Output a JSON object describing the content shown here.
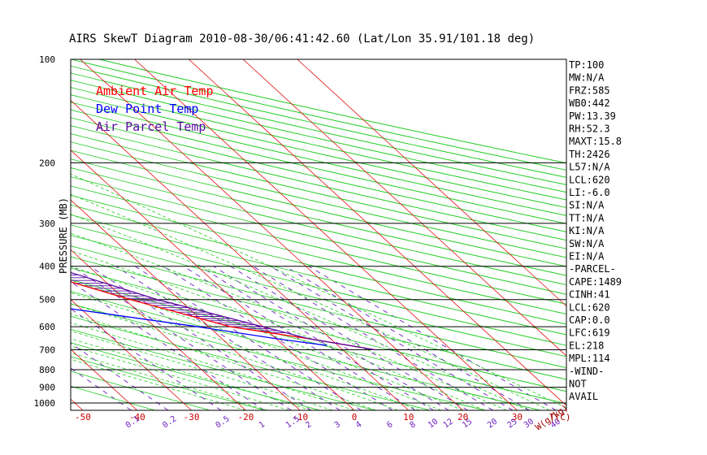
{
  "chart_data": {
    "type": "line",
    "title": "AIRS SkewT Diagram 2010-08-30/06:41:42.60 (Lat/Lon 35.91/101.18 deg)",
    "ylabel": "PRESSURE (MB)",
    "xlabel_bottom": "T(C)",
    "mixing_ratio_label": "W(g/kg)",
    "pressure_levels": [
      100,
      200,
      300,
      400,
      500,
      600,
      700,
      800,
      900,
      1000
    ],
    "pressure_range": [
      100,
      1050
    ],
    "bottom_temperature_ticks": [
      -50,
      -40,
      -30,
      -20,
      -10,
      0,
      10,
      20,
      30
    ],
    "top_temperature_ticks": [
      -120,
      -110,
      -100,
      -90,
      -80,
      -70,
      -60,
      -50,
      -40
    ],
    "mixing_ratio_ticks": [
      "0.1",
      "0.2",
      "0.5",
      "1",
      "1.5",
      "2",
      "3",
      "4",
      "6",
      "8",
      "10",
      "12",
      "15",
      "20",
      "25",
      "30",
      "40"
    ],
    "legend": [
      {
        "label": "Ambient Air Temp",
        "color": "#ff0000"
      },
      {
        "label": "Dew Point Temp",
        "color": "#0000ff"
      },
      {
        "label": "Air Parcel Temp",
        "color": "#5a0aa0"
      }
    ],
    "series": [
      {
        "name": "Ambient Air Temp",
        "color": "#ff0000",
        "points": [
          [
            100,
            -70
          ],
          [
            120,
            -72
          ],
          [
            150,
            -75
          ],
          [
            200,
            -70
          ],
          [
            250,
            -63
          ],
          [
            300,
            -52
          ],
          [
            400,
            -33
          ],
          [
            500,
            -19
          ],
          [
            600,
            -6
          ],
          [
            650,
            6
          ],
          [
            700,
            16
          ]
        ]
      },
      {
        "name": "Dew Point Temp",
        "color": "#0000ff",
        "points": [
          [
            100,
            -90
          ],
          [
            150,
            -100
          ],
          [
            200,
            -108
          ],
          [
            250,
            -112
          ],
          [
            300,
            -108
          ],
          [
            400,
            -80
          ],
          [
            500,
            -42
          ],
          [
            600,
            -12
          ],
          [
            650,
            0
          ],
          [
            680,
            8
          ]
        ]
      },
      {
        "name": "Air Parcel Temp",
        "color": "#5a0aa0",
        "points": [
          [
            100,
            -100
          ],
          [
            150,
            -82
          ],
          [
            200,
            -70
          ],
          [
            250,
            -57
          ],
          [
            300,
            -45
          ],
          [
            400,
            -27
          ],
          [
            500,
            -14
          ],
          [
            600,
            0
          ],
          [
            650,
            6
          ],
          [
            700,
            16
          ]
        ]
      }
    ],
    "indices": [
      "TP:100",
      "MW:N/A",
      "FRZ:585",
      "WB0:442",
      "PW:13.39",
      "RH:52.3",
      "MAXT:15.8",
      "TH:2426",
      "L57:N/A",
      "LCL:620",
      "LI:-6.0",
      "SI:N/A",
      "TT:N/A",
      "KI:N/A",
      "SW:N/A",
      "EI:N/A",
      "-PARCEL-",
      "CAPE:1489",
      "CINH:41",
      "LCL:620",
      "CAP:0.0",
      "LFC:619",
      "EL:218",
      "MPL:114",
      "-WIND-",
      "NOT",
      "AVAIL"
    ]
  }
}
